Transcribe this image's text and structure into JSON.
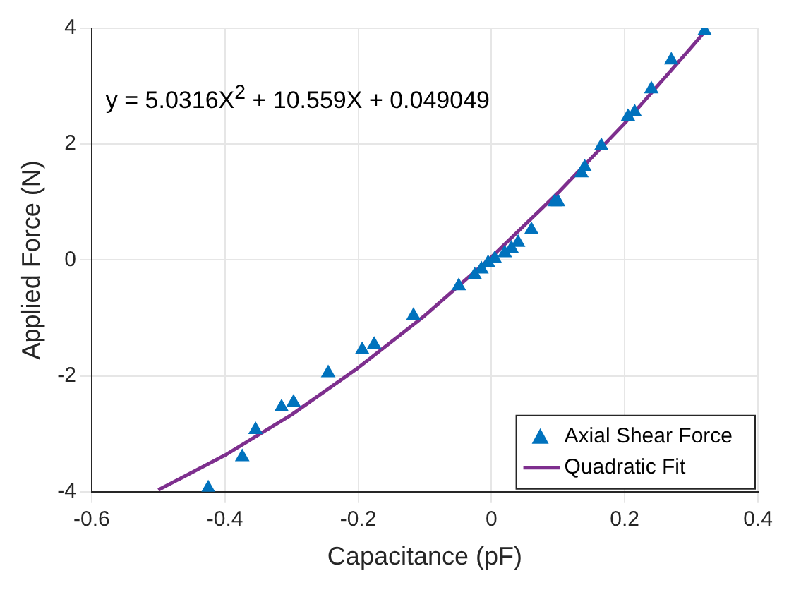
{
  "chart_data": {
    "type": "scatter",
    "xlabel": "Capacitance (pF)",
    "ylabel": "Applied Force (N)",
    "annotations": [
      "y = 5.0316X$^{2}$ + 10.559X + 0.049049"
    ],
    "xlim": [
      -0.6,
      0.4
    ],
    "xticks": [
      -0.6,
      -0.4,
      -0.2,
      0,
      0.2,
      0.4
    ],
    "ylim": [
      -4,
      4
    ],
    "yticks": [
      -4,
      -2,
      0,
      2,
      4
    ],
    "grid": true,
    "legend": "bottom right",
    "marker": "triangle",
    "series": [
      {
        "name": "Axial Shear Force",
        "color": "#0072bd",
        "x": [
          -0.425,
          -0.374,
          -0.354,
          -0.315,
          -0.297,
          -0.245,
          -0.194,
          -0.176,
          -0.117,
          -0.049,
          -0.025,
          -0.015,
          -0.005,
          0.005,
          0.02,
          0.03,
          0.04,
          0.06,
          0.095,
          0.1,
          0.135,
          0.14,
          0.165,
          0.205,
          0.215,
          0.24,
          0.27,
          0.32
        ],
        "values": [
          -3.94,
          -3.4,
          -2.93,
          -2.54,
          -2.46,
          -1.95,
          -1.55,
          -1.46,
          -0.96,
          -0.45,
          -0.26,
          -0.16,
          -0.05,
          0.02,
          0.12,
          0.2,
          0.3,
          0.52,
          1.0,
          1.0,
          1.5,
          1.6,
          1.97,
          2.47,
          2.55,
          2.95,
          3.45,
          3.95
        ]
      },
      {
        "name": "Quadratic Fit",
        "type": "line",
        "color": "#7e2f8e",
        "marker": "none",
        "x": [
          -0.5,
          -0.4,
          -0.3,
          -0.2,
          -0.1,
          0,
          0.1,
          0.2,
          0.3,
          0.32
        ],
        "values": [
          -3.97,
          -3.37,
          -2.67,
          -1.86,
          -0.96,
          0.05,
          1.16,
          2.36,
          3.67,
          3.94
        ]
      }
    ]
  }
}
